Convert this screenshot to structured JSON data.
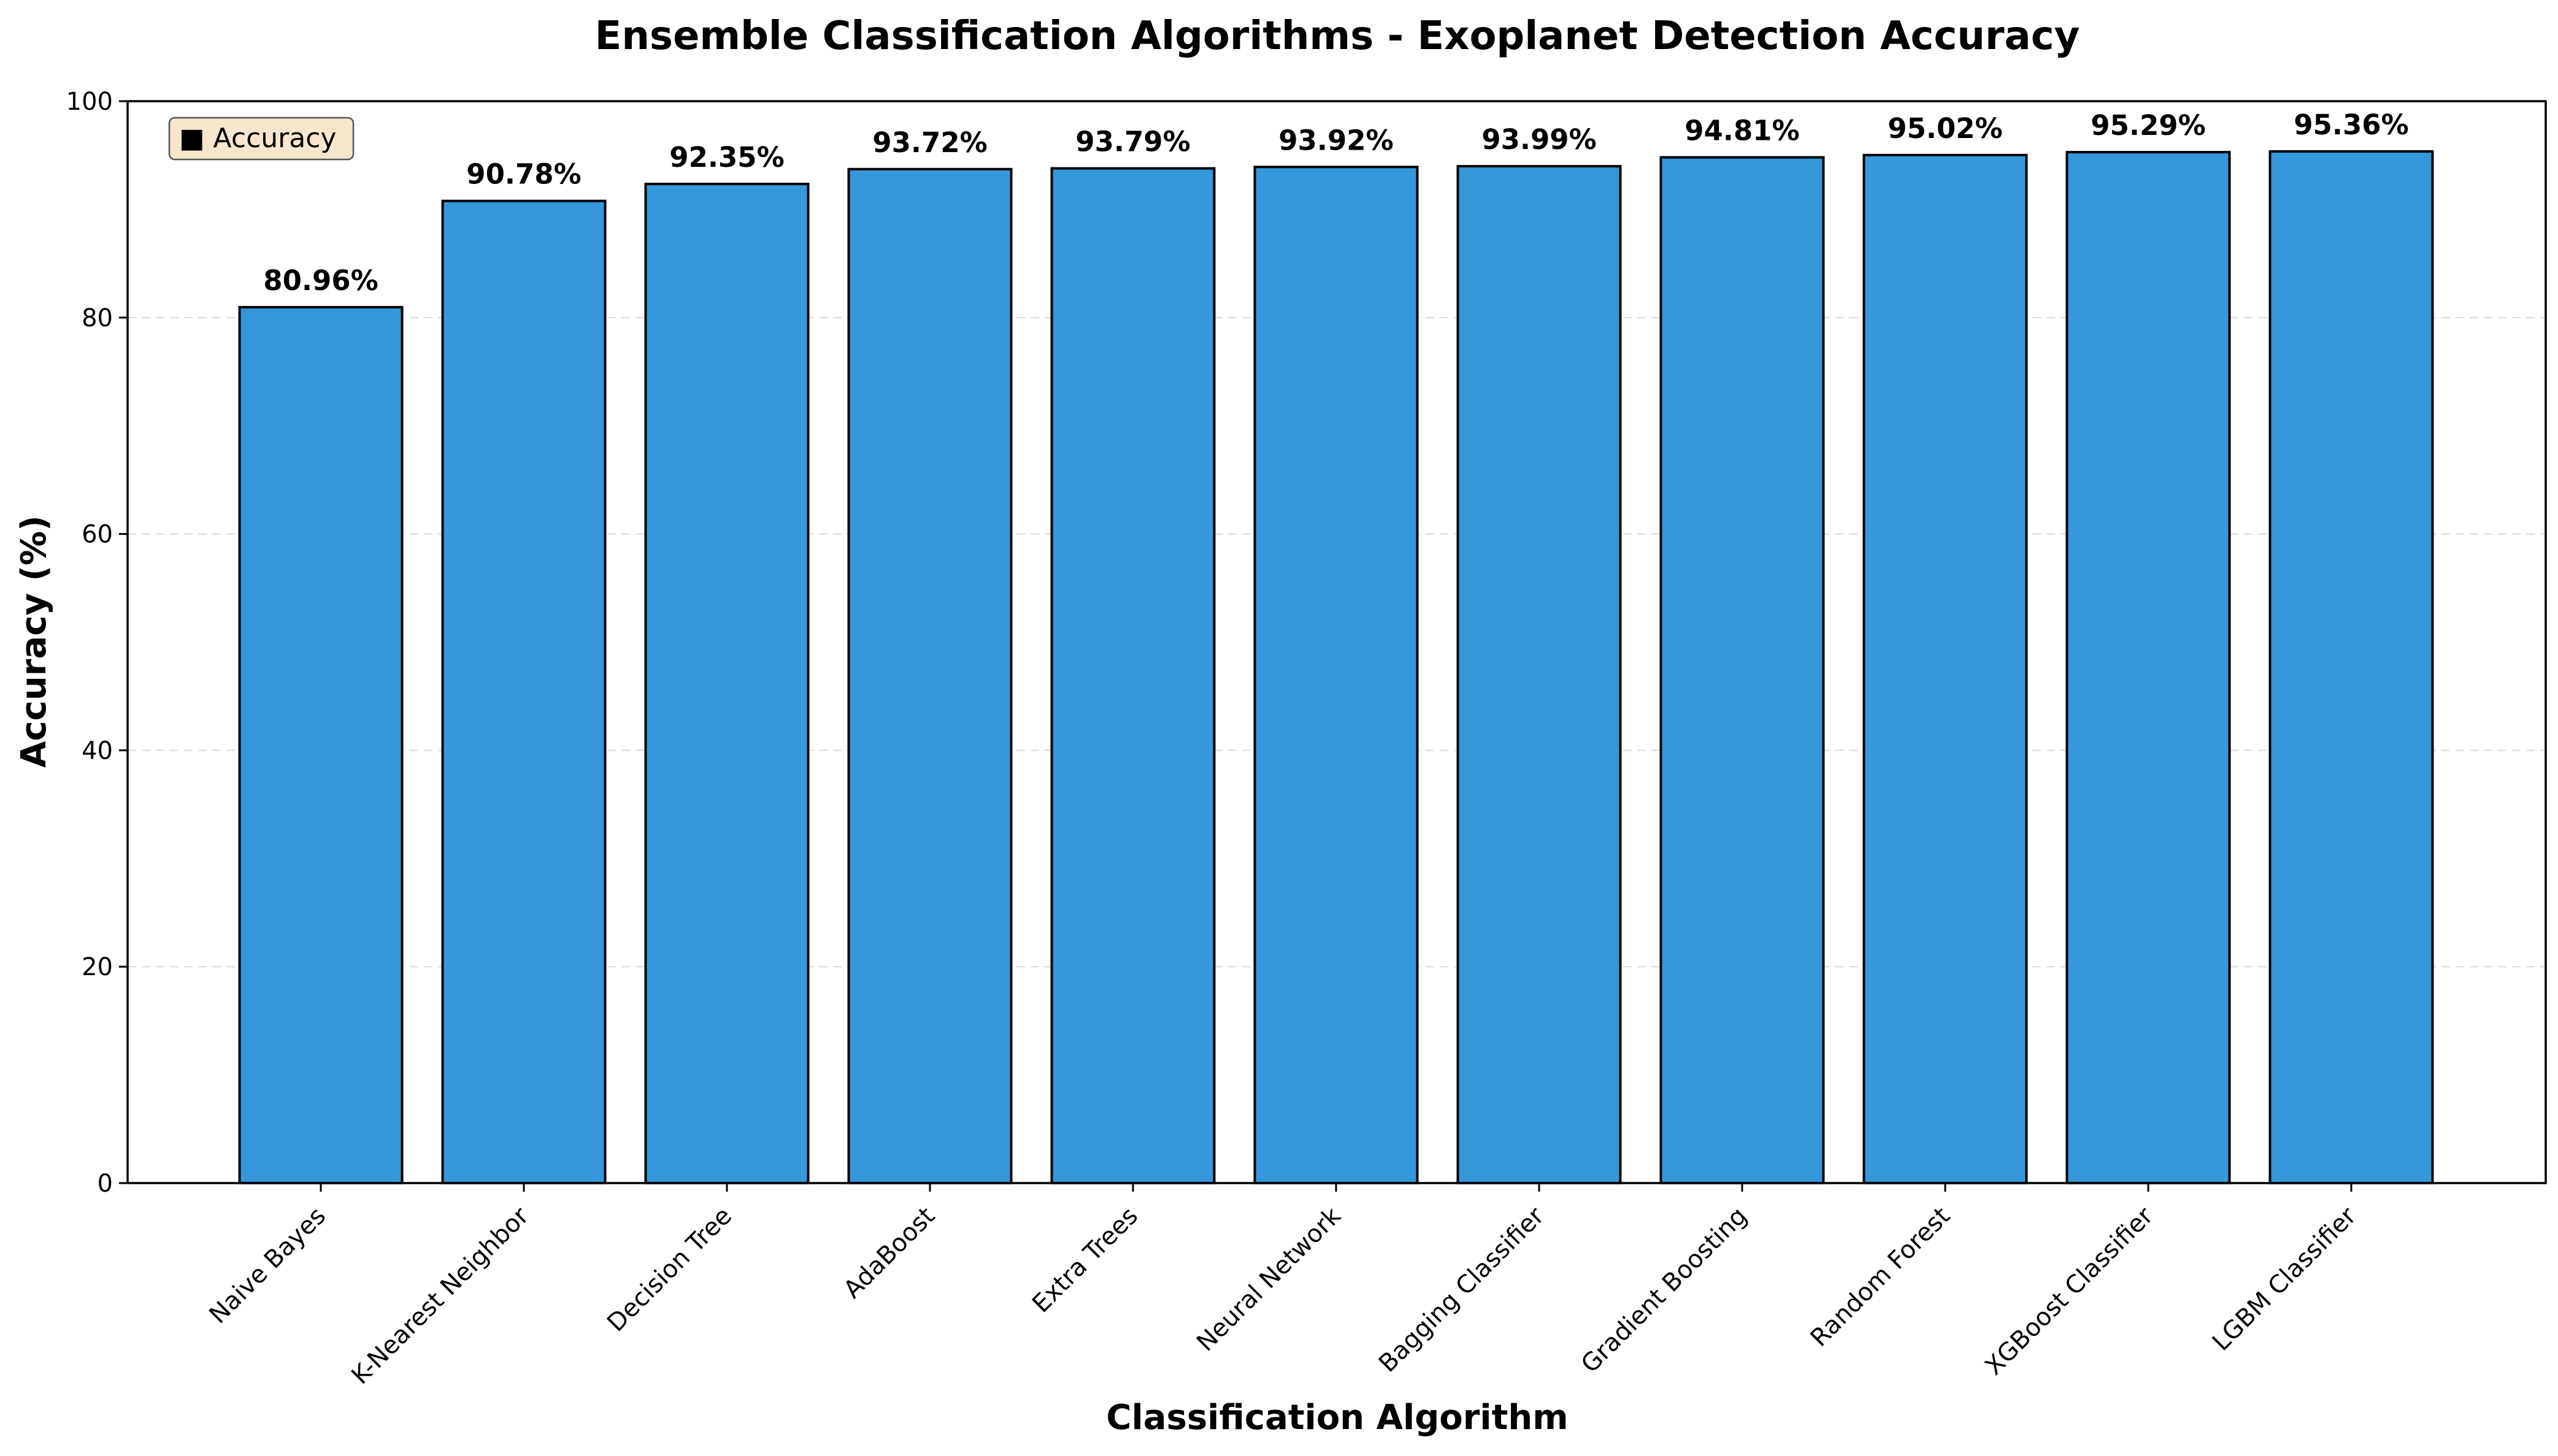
{
  "chart_data": {
    "type": "bar",
    "title": "Ensemble Classification Algorithms - Exoplanet Detection Accuracy",
    "xlabel": "Classification Algorithm",
    "ylabel": "Accuracy (%)",
    "ylim": [
      0,
      100
    ],
    "yticks": [
      0,
      20,
      40,
      60,
      80,
      100
    ],
    "grid": "y-dashed",
    "legend": {
      "label": "■ Accuracy",
      "placement": "top-left"
    },
    "categories": [
      "Naive Bayes",
      "K-Nearest Neighbor",
      "Decision Tree",
      "AdaBoost",
      "Extra Trees",
      "Neural Network",
      "Bagging Classifier",
      "Gradient Boosting",
      "Random Forest",
      "XGBoost Classifier",
      "LGBM Classifier"
    ],
    "values": [
      80.96,
      90.78,
      92.35,
      93.72,
      93.79,
      93.92,
      93.99,
      94.81,
      95.02,
      95.29,
      95.36
    ],
    "value_labels": [
      "80.96%",
      "90.78%",
      "92.35%",
      "93.72%",
      "93.79%",
      "93.92%",
      "93.99%",
      "94.81%",
      "95.02%",
      "95.29%",
      "95.36%"
    ],
    "colors": {
      "bar": "#3498db",
      "edge": "#000000",
      "legend_bg": "#f5e6cc"
    }
  }
}
